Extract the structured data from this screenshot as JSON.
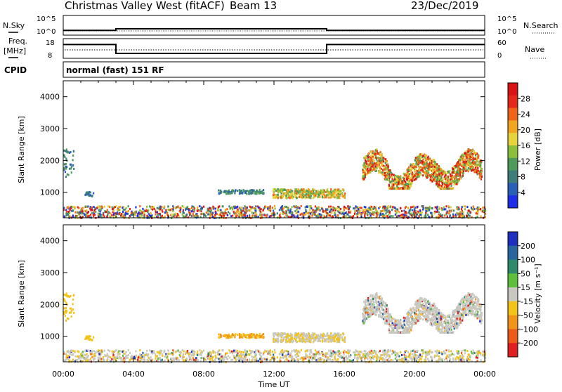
{
  "header": {
    "title": "Christmas Valley West (fitACF)",
    "beam": "Beam 13",
    "date": "23/Dec/2019",
    "mode": "normal (fast) 151 RF"
  },
  "side_labels": {
    "nsky": "N.Sky",
    "nsearch": "N.Search",
    "freq_top": "Freq.",
    "freq_unit": "[MHz]",
    "nave": "Nave",
    "cpid": "CPID"
  },
  "small_axes": {
    "nsky_ticks": [
      "10^5",
      "10^0"
    ],
    "nsearch_ticks": [
      "10^5",
      "10^0"
    ],
    "freq_ticks": [
      "18",
      "8"
    ],
    "nave_ticks": [
      "60",
      "0"
    ]
  },
  "chart_data": [
    {
      "type": "line",
      "panel": "noise",
      "series": [
        {
          "name": "N.Sky",
          "x": [
            "00:00",
            "03:00",
            "03:00",
            "15:00",
            "15:00",
            "24:00"
          ],
          "values": [
            1.2,
            1.2,
            1.6,
            1.6,
            1.2,
            1.2
          ]
        }
      ]
    },
    {
      "type": "line",
      "panel": "frequency",
      "ylim": [
        8,
        18
      ],
      "series": [
        {
          "name": "Freq.",
          "x": [
            "00:00",
            "03:00",
            "03:00",
            "15:00",
            "15:00",
            "24:00"
          ],
          "values": [
            15,
            15,
            10.5,
            10.5,
            15,
            15
          ]
        }
      ]
    },
    {
      "type": "heatmap",
      "panel": "power",
      "xlabel": "",
      "ylabel": "Slant Range [km]",
      "xlim": [
        0,
        24
      ],
      "ylim": [
        200,
        4500
      ],
      "yticks": [
        1000,
        2000,
        3000,
        4000
      ],
      "colorbar": {
        "label": "Power [dB]",
        "ticks": [
          4,
          8,
          12,
          16,
          20,
          24,
          28
        ]
      }
    },
    {
      "type": "heatmap",
      "panel": "velocity",
      "xlabel": "Time UT",
      "ylabel": "Slant Range [km]",
      "xlim": [
        0,
        24
      ],
      "ylim": [
        200,
        4500
      ],
      "yticks": [
        1000,
        2000,
        3000,
        4000
      ],
      "xticks": [
        "00:00",
        "04:00",
        "08:00",
        "12:00",
        "16:00",
        "20:00",
        "00:00"
      ],
      "colorbar": {
        "label": "Velocity [m s⁻¹]",
        "ticks": [
          200,
          100,
          50,
          15,
          -15,
          -50,
          -100,
          -200
        ]
      }
    }
  ],
  "colors": {
    "power": [
      "#1e2ee8",
      "#2a5fb8",
      "#3f7d7a",
      "#4d9a5a",
      "#8cbf3a",
      "#e6d43a",
      "#f2a61f",
      "#ef6418",
      "#e6281a",
      "#d81414"
    ],
    "velocity": [
      "#1c2fbf",
      "#27679e",
      "#2e8a6a",
      "#5dbf3c",
      "#c8c8c0",
      "#f2c318",
      "#f29418",
      "#ee5a18",
      "#e02020"
    ]
  }
}
